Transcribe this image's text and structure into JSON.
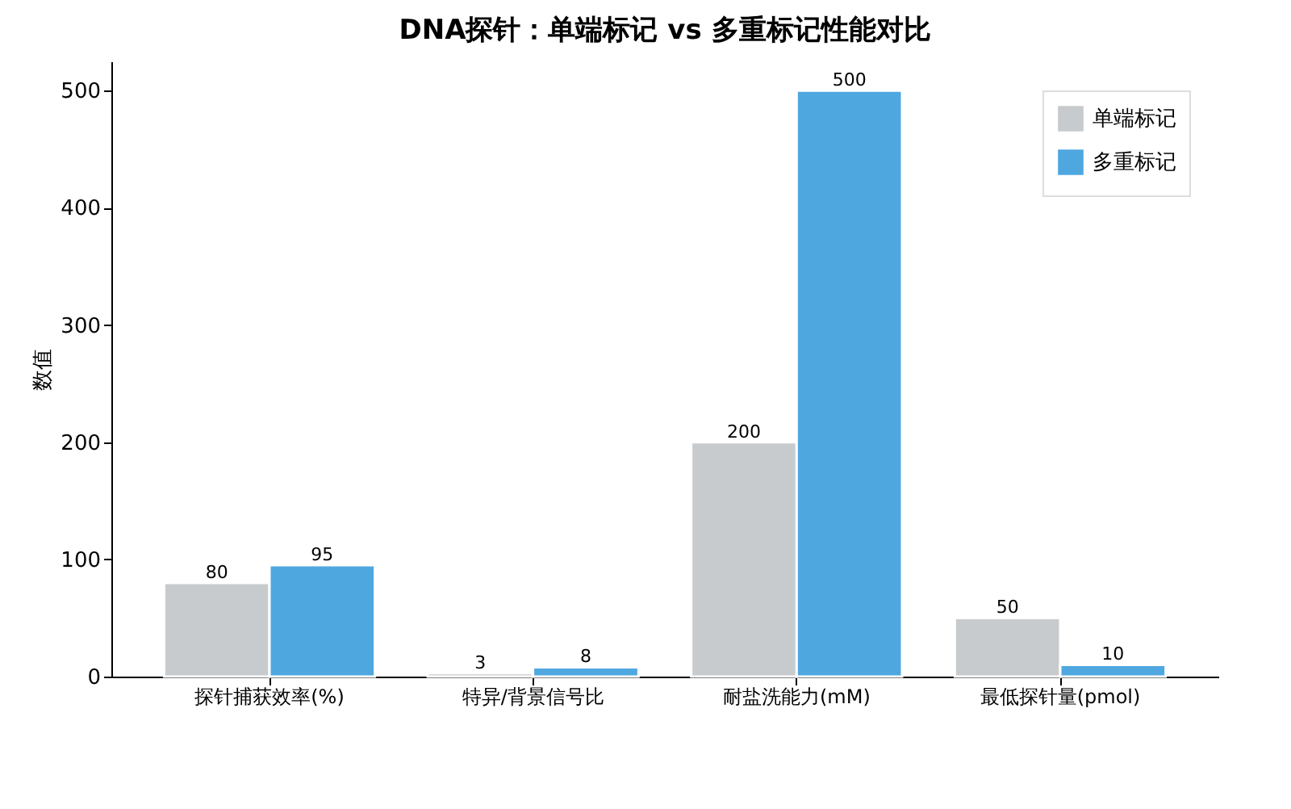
{
  "chart_data": {
    "type": "bar",
    "title": "DNA探针：单端标记 vs 多重标记性能对比",
    "ylabel": "数值",
    "categories": [
      "探针捕获效率(%)",
      "特异/背景信号比",
      "耐盐洗能力(mM)",
      "最低探针量(pmol)"
    ],
    "series": [
      {
        "name": "单端标记",
        "color": "#c8cbcd",
        "values": [
          80,
          3,
          200,
          50
        ]
      },
      {
        "name": "多重标记",
        "color": "#4fa7e0",
        "values": [
          95,
          8,
          500,
          10
        ]
      }
    ],
    "ylim": [
      0,
      525
    ],
    "yticks": [
      0,
      100,
      200,
      300,
      400,
      500
    ],
    "grid": false,
    "legend": "top right",
    "data_labels": true
  }
}
